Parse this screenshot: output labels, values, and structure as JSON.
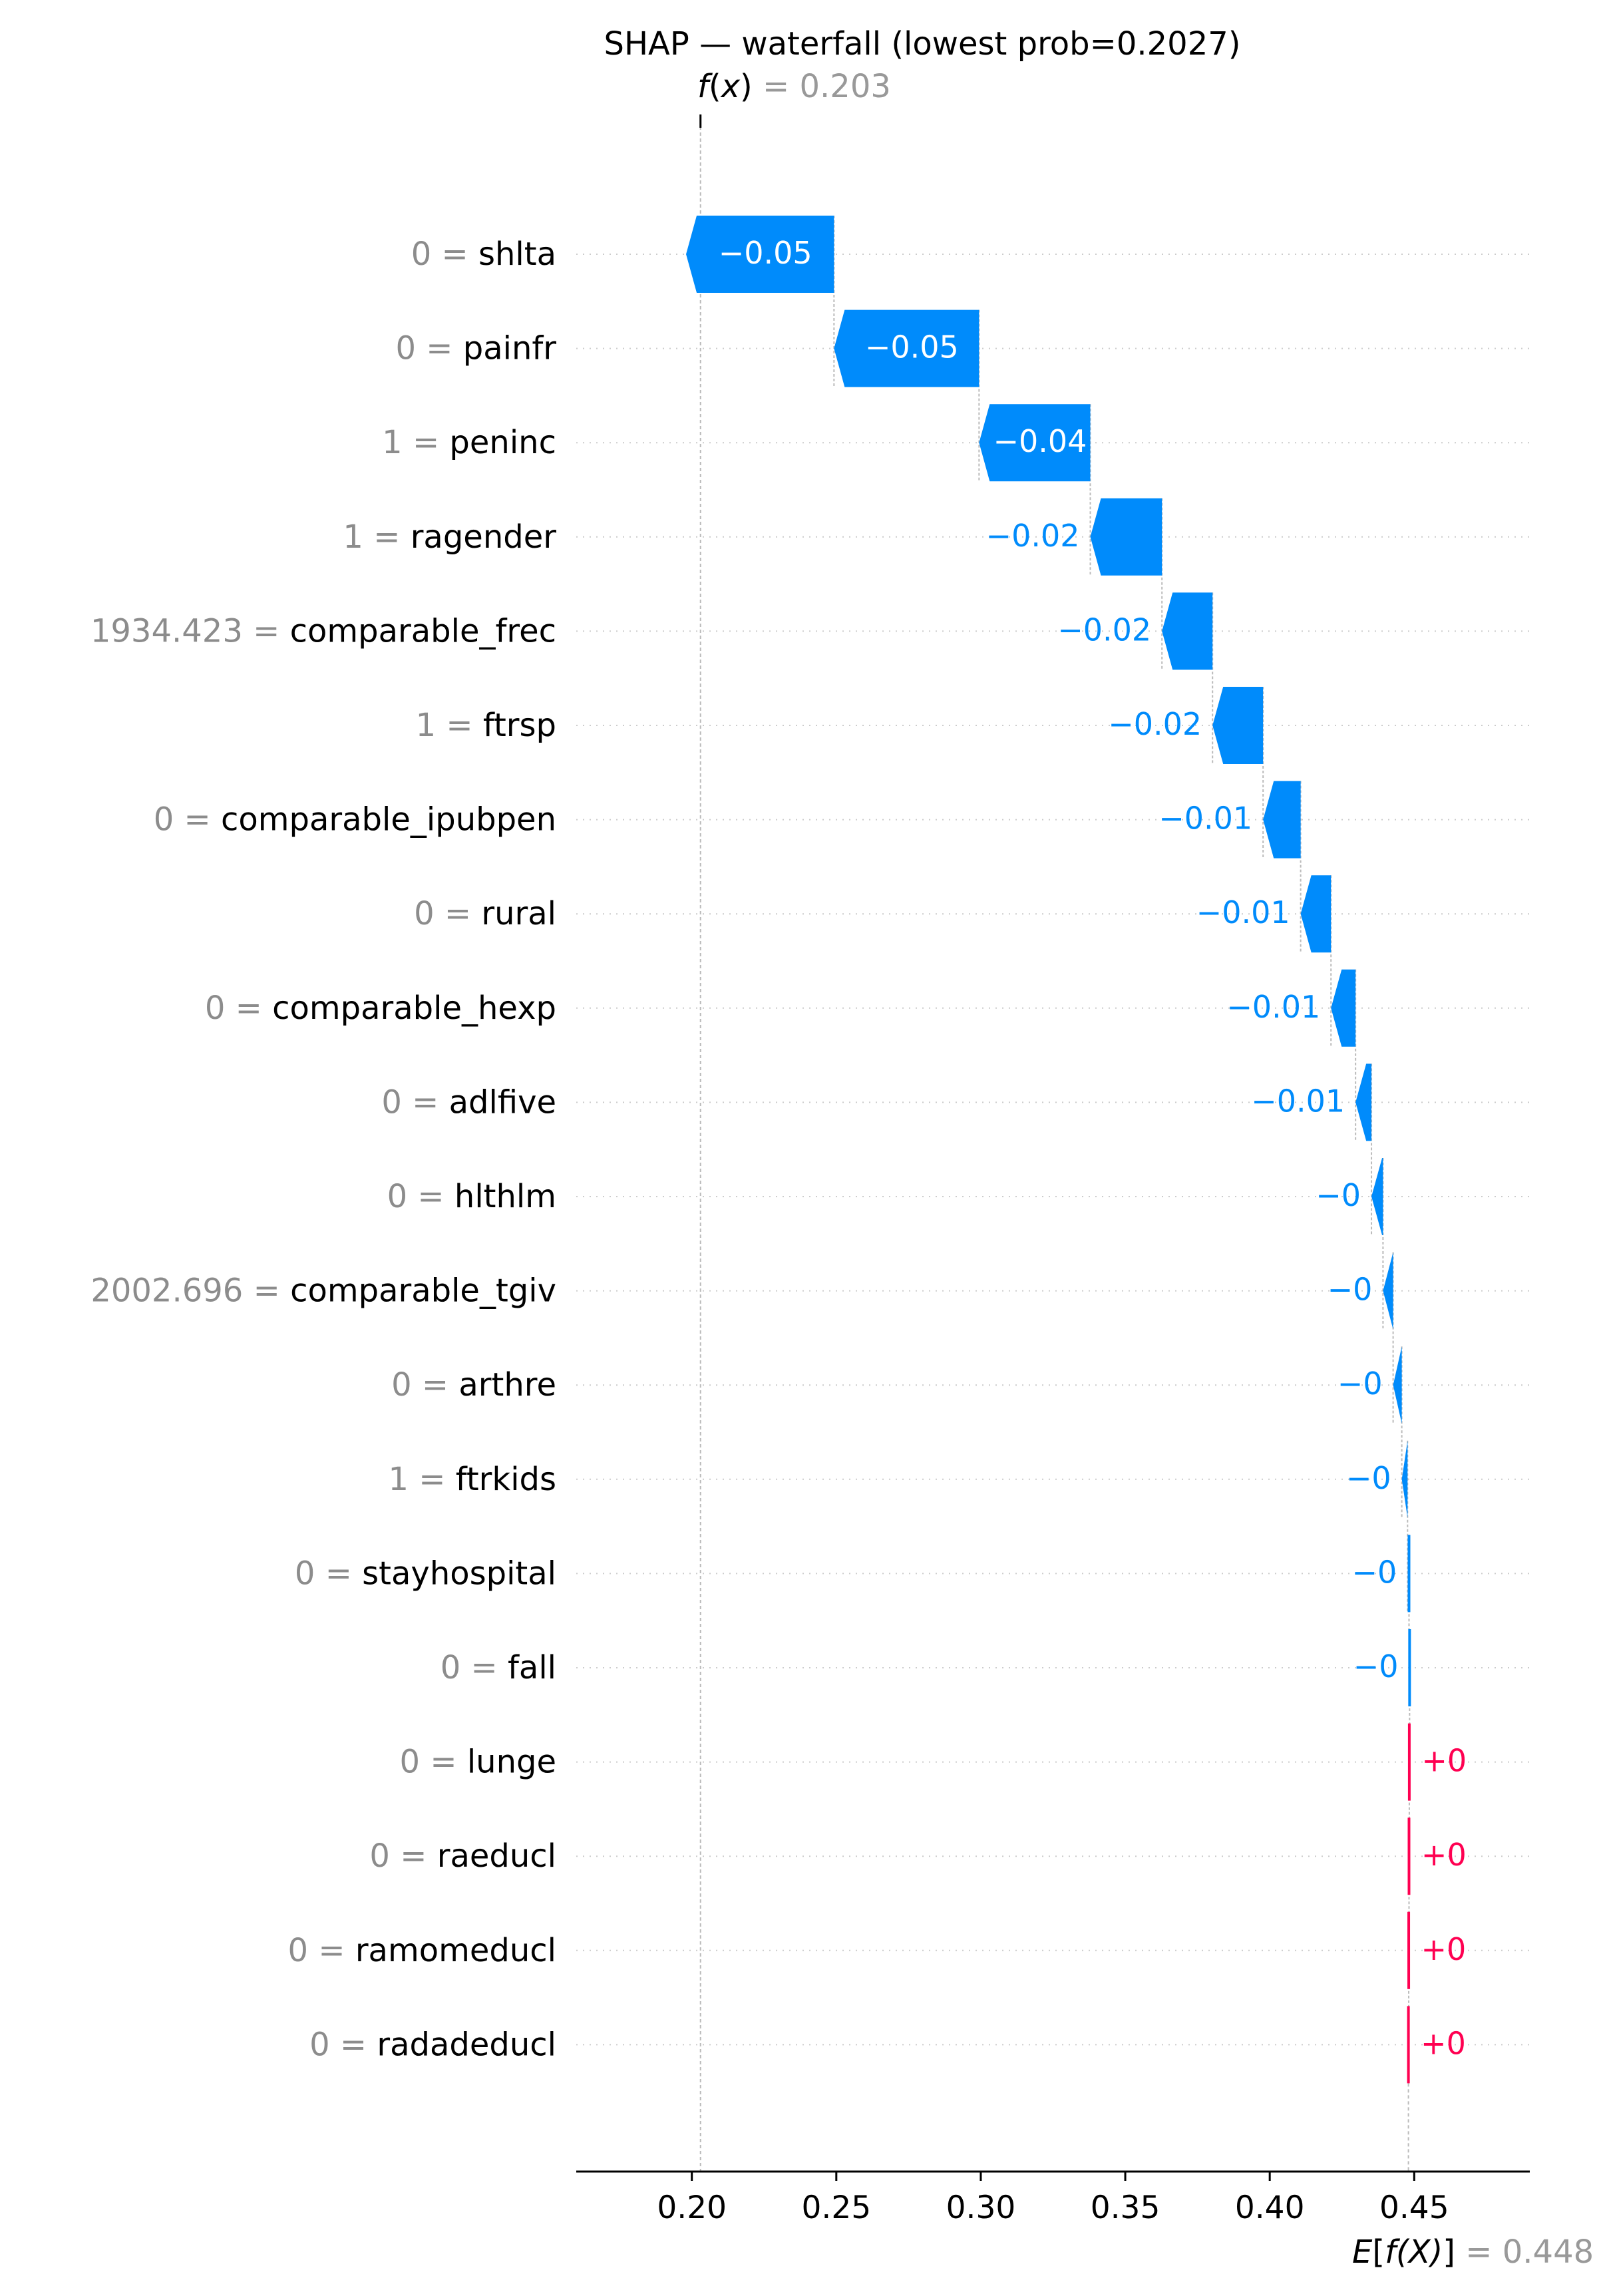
{
  "chart_data": {
    "type": "waterfall",
    "title": "SHAP — waterfall (lowest prob=0.2027)",
    "fx": {
      "label_prefix": "f",
      "label_var": "x",
      "value_label": "= 0.203",
      "value": 0.203
    },
    "base": {
      "label_prefix": "E",
      "label_var": "f(X)",
      "value_label": "= 0.448",
      "value": 0.448
    },
    "xlim": [
      0.16,
      0.49
    ],
    "xticks": [
      0.2,
      0.25,
      0.3,
      0.35,
      0.4,
      0.45
    ],
    "xtick_labels": [
      "0.20",
      "0.25",
      "0.30",
      "0.35",
      "0.40",
      "0.45"
    ],
    "colors": {
      "negative": "#008bfb",
      "positive": "#ff0051",
      "label_negative": "#008bfb",
      "label_positive": "#ff0051"
    },
    "features": [
      {
        "value": "0",
        "name": "shlta",
        "contribution": -0.0512,
        "label": "−0.05"
      },
      {
        "value": "0",
        "name": "painfr",
        "contribution": -0.0502,
        "label": "−0.05"
      },
      {
        "value": "1",
        "name": "peninc",
        "contribution": -0.0385,
        "label": "−0.04"
      },
      {
        "value": "1",
        "name": "ragender",
        "contribution": -0.0248,
        "label": "−0.02"
      },
      {
        "value": "1934.423",
        "name": "comparable_frec",
        "contribution": -0.0175,
        "label": "−0.02"
      },
      {
        "value": "1",
        "name": "ftrsp",
        "contribution": -0.0175,
        "label": "−0.02"
      },
      {
        "value": "0",
        "name": "comparable_ipubpen",
        "contribution": -0.013,
        "label": "−0.01"
      },
      {
        "value": "0",
        "name": "rural",
        "contribution": -0.0105,
        "label": "−0.01"
      },
      {
        "value": "0",
        "name": "comparable_hexp",
        "contribution": -0.0085,
        "label": "−0.01"
      },
      {
        "value": "0",
        "name": "adlfive",
        "contribution": -0.0055,
        "label": "−0.01"
      },
      {
        "value": "0",
        "name": "hlthlm",
        "contribution": -0.004,
        "label": "−0"
      },
      {
        "value": "2002.696",
        "name": "comparable_tgiv",
        "contribution": -0.0035,
        "label": "−0"
      },
      {
        "value": "0",
        "name": "arthre",
        "contribution": -0.003,
        "label": "−0"
      },
      {
        "value": "1",
        "name": "ftrkids",
        "contribution": -0.002,
        "label": "−0"
      },
      {
        "value": "0",
        "name": "stayhospital",
        "contribution": -0.0005,
        "label": "−0"
      },
      {
        "value": "0",
        "name": "fall",
        "contribution": -0.0002,
        "label": "−0"
      },
      {
        "value": "0",
        "name": "lunge",
        "contribution": 0.0001,
        "label": "+0"
      },
      {
        "value": "0",
        "name": "raeducl",
        "contribution": 0.0001,
        "label": "+0"
      },
      {
        "value": "0",
        "name": "ramomeducl",
        "contribution": 0.0001,
        "label": "+0"
      },
      {
        "value": "0",
        "name": "radadeducl",
        "contribution": 0.0001,
        "label": "+0"
      }
    ]
  }
}
